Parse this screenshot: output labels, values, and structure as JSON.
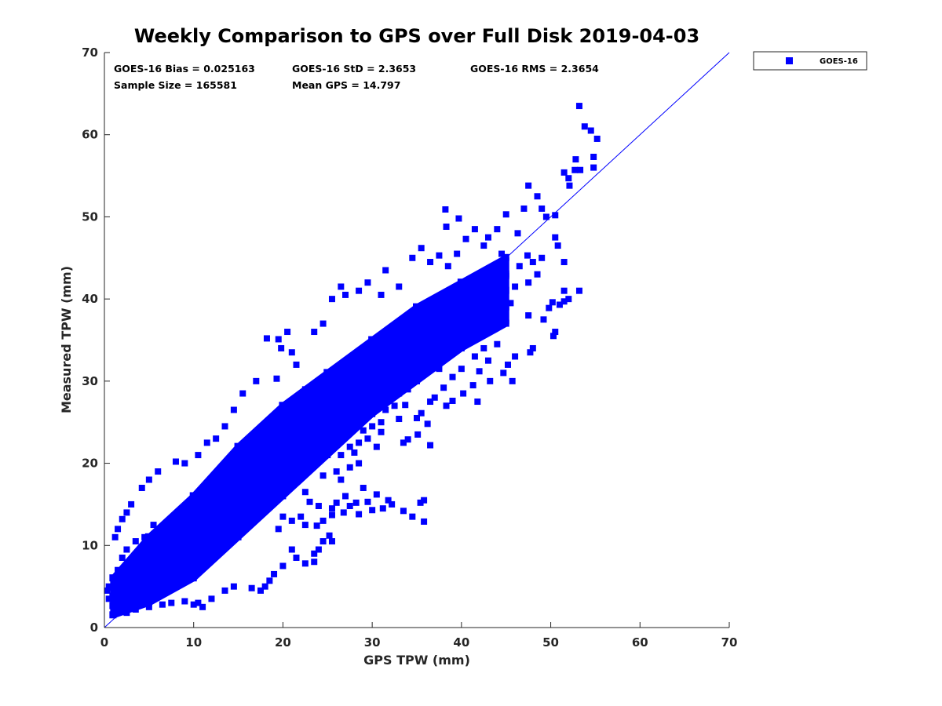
{
  "chart_data": {
    "type": "scatter",
    "title": "Weekly Comparison to GPS over Full Disk 2019-04-03",
    "xlabel": "GPS TPW (mm)",
    "ylabel": "Measured TPW (mm)",
    "xlim": [
      0,
      70
    ],
    "ylim": [
      0,
      70
    ],
    "xticks": [
      "0",
      "10",
      "20",
      "30",
      "40",
      "50",
      "60",
      "70"
    ],
    "yticks": [
      "0",
      "10",
      "20",
      "30",
      "40",
      "50",
      "60",
      "70"
    ],
    "grid": false,
    "legend_position": "outside-top-right",
    "stats": [
      "GOES-16 Bias = 0.025163",
      "GOES-16 StD = 2.3653",
      "GOES-16 RMS = 2.3654",
      "Sample Size = 165581",
      "Mean GPS = 14.797"
    ],
    "reference_line": {
      "x": [
        0,
        70
      ],
      "y": [
        0,
        70
      ],
      "color": "#0000ff"
    },
    "series": [
      {
        "name": "GOES-16",
        "color": "#0000ff",
        "marker": "square",
        "density_band": {
          "x": [
            1,
            5,
            10,
            15,
            20,
            25,
            30,
            35,
            40,
            45
          ],
          "y_low": [
            1.5,
            3,
            6,
            11,
            16,
            21,
            26,
            30,
            34,
            37
          ],
          "y_high": [
            6,
            11,
            16,
            22,
            27,
            31,
            35,
            39,
            42,
            45
          ]
        },
        "points": [
          [
            53.2,
            63.5
          ],
          [
            53.8,
            61
          ],
          [
            54.5,
            60.5
          ],
          [
            55.2,
            59.5
          ],
          [
            54.8,
            57.3
          ],
          [
            54.8,
            56
          ],
          [
            52.8,
            57
          ],
          [
            52.7,
            55.7
          ],
          [
            53.3,
            55.7
          ],
          [
            51.5,
            55.4
          ],
          [
            52,
            54.7
          ],
          [
            52.1,
            53.8
          ],
          [
            47.5,
            53.8
          ],
          [
            48.5,
            52.5
          ],
          [
            49,
            51
          ],
          [
            49.5,
            50
          ],
          [
            50.5,
            50.2
          ],
          [
            47,
            51
          ],
          [
            45,
            50.3
          ],
          [
            38.2,
            50.9
          ],
          [
            38.3,
            48.8
          ],
          [
            39.7,
            49.8
          ],
          [
            40.5,
            47.3
          ],
          [
            41.5,
            48.5
          ],
          [
            46.3,
            48
          ],
          [
            47.4,
            45.3
          ],
          [
            50.5,
            47.5
          ],
          [
            50.8,
            46.5
          ],
          [
            51.5,
            44.5
          ],
          [
            53.2,
            41
          ],
          [
            51.5,
            41
          ],
          [
            52,
            40
          ],
          [
            50.2,
            39.6
          ],
          [
            51,
            39.3
          ],
          [
            49.8,
            38.9
          ],
          [
            51.5,
            39.7
          ],
          [
            49.2,
            37.5
          ],
          [
            47.5,
            38
          ],
          [
            50.5,
            36
          ],
          [
            50.3,
            35.5
          ],
          [
            48,
            34
          ],
          [
            47.7,
            33.5
          ],
          [
            46,
            33
          ],
          [
            45.2,
            32
          ],
          [
            44.7,
            31
          ],
          [
            45.7,
            30
          ],
          [
            43.2,
            30
          ],
          [
            41.3,
            29.5
          ],
          [
            40.2,
            28.5
          ],
          [
            41.8,
            27.5
          ],
          [
            38.3,
            27
          ],
          [
            35.5,
            26.1
          ],
          [
            35,
            25.5
          ],
          [
            36.2,
            24.8
          ],
          [
            39,
            27.6
          ],
          [
            33.7,
            27.1
          ],
          [
            33,
            25.4
          ],
          [
            35.1,
            23.5
          ],
          [
            34,
            22.9
          ],
          [
            36.5,
            22.2
          ],
          [
            30.5,
            22
          ],
          [
            31,
            23.8
          ],
          [
            33.5,
            22.5
          ],
          [
            35.8,
            15.5
          ],
          [
            35.4,
            15.2
          ],
          [
            34.5,
            13.5
          ],
          [
            33.5,
            14.2
          ],
          [
            31.8,
            15.5
          ],
          [
            31.2,
            14.5
          ],
          [
            32.2,
            15
          ],
          [
            29.5,
            15.3
          ],
          [
            30,
            14.3
          ],
          [
            28.5,
            13.8
          ],
          [
            28.2,
            15.2
          ],
          [
            27.5,
            14.8
          ],
          [
            26.8,
            14
          ],
          [
            26,
            15.2
          ],
          [
            25.5,
            13.7
          ],
          [
            24,
            14.8
          ],
          [
            23,
            15.3
          ],
          [
            22.5,
            16.5
          ],
          [
            22,
            13.5
          ],
          [
            21,
            13
          ],
          [
            20,
            13.5
          ],
          [
            19.5,
            12
          ],
          [
            22.5,
            12.5
          ],
          [
            24.5,
            13
          ],
          [
            35.8,
            12.9
          ],
          [
            25.5,
            14.5
          ],
          [
            27,
            16
          ],
          [
            29,
            17
          ],
          [
            30.5,
            16.2
          ],
          [
            23.8,
            12.4
          ],
          [
            25.5,
            10.5
          ],
          [
            25.2,
            11.2
          ],
          [
            24.5,
            10.5
          ],
          [
            24,
            9.5
          ],
          [
            23.5,
            9
          ],
          [
            23.5,
            8
          ],
          [
            22.5,
            7.8
          ],
          [
            21.5,
            8.5
          ],
          [
            21,
            9.5
          ],
          [
            20,
            7.5
          ],
          [
            19,
            6.5
          ],
          [
            18.5,
            5.7
          ],
          [
            18,
            5
          ],
          [
            17.5,
            4.5
          ],
          [
            16.5,
            4.8
          ],
          [
            14.5,
            5
          ],
          [
            13.5,
            4.5
          ],
          [
            12,
            3.5
          ],
          [
            11,
            2.5
          ],
          [
            10.5,
            3
          ],
          [
            26.5,
            18
          ],
          [
            27.5,
            19.5
          ],
          [
            28.5,
            20
          ],
          [
            26,
            19
          ],
          [
            24.5,
            18.5
          ],
          [
            19.5,
            35.1
          ],
          [
            18.2,
            35.2
          ],
          [
            19.8,
            34
          ],
          [
            17,
            30
          ],
          [
            15.5,
            28.5
          ],
          [
            14.5,
            26.5
          ],
          [
            13.5,
            24.5
          ],
          [
            12.5,
            23
          ],
          [
            11.5,
            22.5
          ],
          [
            10.5,
            21
          ],
          [
            9,
            20
          ],
          [
            8,
            20.2
          ],
          [
            6,
            19
          ],
          [
            5,
            18
          ],
          [
            4.2,
            17
          ],
          [
            3,
            15
          ],
          [
            2.5,
            14
          ],
          [
            2,
            13.2
          ],
          [
            1.5,
            12
          ],
          [
            1.2,
            11
          ],
          [
            20.5,
            36
          ],
          [
            21,
            33.5
          ],
          [
            19.3,
            30.3
          ],
          [
            21.5,
            32
          ],
          [
            22.5,
            29
          ],
          [
            26.5,
            41.5
          ],
          [
            24.5,
            37
          ],
          [
            23.5,
            36
          ],
          [
            25.5,
            40
          ],
          [
            27,
            40.5
          ],
          [
            28.5,
            41
          ],
          [
            29.5,
            42
          ],
          [
            31,
            40.5
          ],
          [
            31.5,
            43.5
          ],
          [
            33,
            41.5
          ],
          [
            34.5,
            45
          ],
          [
            35.5,
            46.2
          ],
          [
            36.5,
            44.5
          ],
          [
            37.5,
            45.3
          ],
          [
            38.5,
            44
          ],
          [
            39.5,
            45.5
          ],
          [
            42.5,
            46.5
          ],
          [
            43,
            47.5
          ],
          [
            44,
            48.5
          ],
          [
            44.5,
            45.5
          ],
          [
            46.5,
            44
          ],
          [
            48,
            44.5
          ],
          [
            49,
            45
          ],
          [
            48.5,
            43
          ],
          [
            47.5,
            42
          ],
          [
            45,
            42.8
          ],
          [
            46,
            41.5
          ],
          [
            45.5,
            39.5
          ],
          [
            44.5,
            38.5
          ],
          [
            43.8,
            36.5
          ],
          [
            44,
            34.5
          ],
          [
            42.5,
            34
          ],
          [
            43,
            32.5
          ],
          [
            41.5,
            33
          ],
          [
            42,
            31.2
          ],
          [
            40,
            31.5
          ],
          [
            39,
            30.5
          ],
          [
            38,
            29.2
          ],
          [
            37,
            28
          ],
          [
            36.5,
            27.5
          ],
          [
            37.5,
            31.5
          ],
          [
            38.5,
            33
          ],
          [
            35,
            30
          ],
          [
            34,
            29
          ],
          [
            33,
            28.5
          ],
          [
            32.5,
            27
          ],
          [
            31.5,
            26.5
          ],
          [
            31,
            25
          ],
          [
            30,
            24.5
          ],
          [
            29,
            24
          ],
          [
            29.5,
            23
          ],
          [
            28.5,
            22.5
          ],
          [
            27.5,
            22
          ],
          [
            28,
            21.3
          ],
          [
            26.5,
            21
          ],
          [
            10,
            2.8
          ],
          [
            9,
            3.2
          ],
          [
            7.5,
            3
          ],
          [
            6.5,
            2.8
          ],
          [
            5,
            2.5
          ],
          [
            3.5,
            2.2
          ],
          [
            2.5,
            1.8
          ],
          [
            2,
            2.5
          ],
          [
            1.5,
            2
          ],
          [
            1,
            3
          ],
          [
            0.5,
            3.5
          ],
          [
            0.3,
            4.5
          ],
          [
            0.5,
            5
          ],
          [
            1,
            6
          ],
          [
            1.5,
            7
          ],
          [
            2,
            8.5
          ],
          [
            2.5,
            9.5
          ],
          [
            3.5,
            10.5
          ],
          [
            4.5,
            11
          ],
          [
            5.5,
            12.5
          ]
        ]
      }
    ]
  }
}
